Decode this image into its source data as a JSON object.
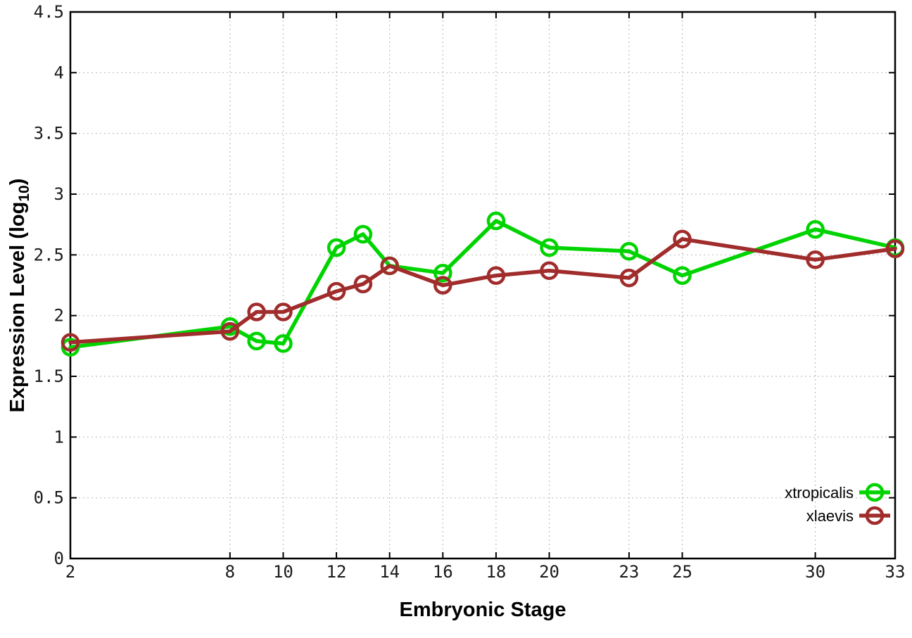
{
  "chart_data": {
    "type": "line",
    "title": "",
    "xlabel": "Embryonic Stage",
    "ylabel_main": "Expression Level (log",
    "ylabel_sub": "10",
    "ylabel_close": ")",
    "x": [
      2,
      8,
      9,
      10,
      12,
      13,
      14,
      16,
      18,
      20,
      23,
      25,
      30,
      33
    ],
    "series": [
      {
        "name": "xtropicalis",
        "color": "#00d400",
        "values": [
          1.74,
          1.91,
          1.79,
          1.77,
          2.56,
          2.67,
          2.41,
          2.35,
          2.78,
          2.56,
          2.53,
          2.33,
          2.71,
          2.56
        ]
      },
      {
        "name": "xlaevis",
        "color": "#a02c2c",
        "values": [
          1.78,
          1.87,
          2.03,
          2.03,
          2.2,
          2.26,
          2.41,
          2.25,
          2.33,
          2.37,
          2.31,
          2.63,
          2.46,
          2.55
        ]
      }
    ],
    "xlim": [
      2,
      33
    ],
    "ylim": [
      0,
      4.5
    ],
    "xtick_labels": [
      "2",
      "8",
      "10",
      "12",
      "14",
      "16",
      "18",
      "20",
      "23",
      "25",
      "30",
      "33"
    ],
    "ytick_labels": [
      "0",
      "0.5",
      "1",
      "1.5",
      "2",
      "2.5",
      "3",
      "3.5",
      "4",
      "4.5"
    ],
    "grid": true,
    "legend_position": "bottom-right",
    "marker": "open-circle"
  },
  "colors": {
    "background": "#ffffff",
    "border": "#000000",
    "grid": "#bfbfbf",
    "tick_text": "#1a1a1a"
  }
}
